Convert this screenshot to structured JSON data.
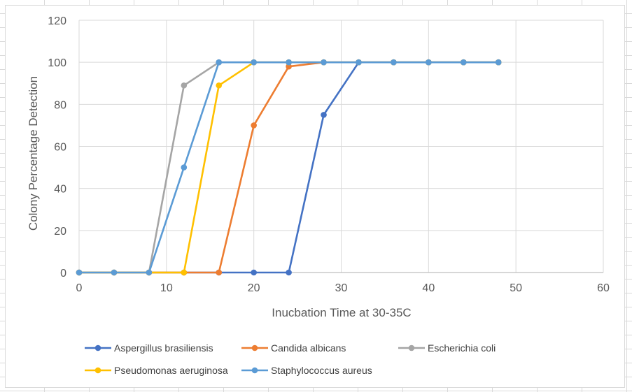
{
  "chart_data": {
    "type": "line",
    "title": "",
    "xlabel": "Inucbation Time at 30-35C",
    "ylabel": "Colony Percentage Detection",
    "xlim": [
      0,
      60
    ],
    "ylim": [
      0,
      120
    ],
    "x_ticks": [
      0,
      10,
      20,
      30,
      40,
      50,
      60
    ],
    "y_ticks": [
      0,
      20,
      40,
      60,
      80,
      100,
      120
    ],
    "grid": true,
    "legend_position": "bottom",
    "series": [
      {
        "name": "Aspergillus brasiliensis",
        "color": "#4472c4",
        "x": [
          0,
          4,
          8,
          12,
          16,
          20,
          24,
          28,
          32,
          36,
          40,
          44,
          48
        ],
        "values": [
          0,
          0,
          0,
          0,
          0,
          0,
          0,
          75,
          100,
          100,
          100,
          100,
          100
        ]
      },
      {
        "name": "Candida albicans",
        "color": "#ed7d31",
        "x": [
          0,
          4,
          8,
          12,
          16,
          20,
          24,
          28,
          32,
          36,
          40,
          44,
          48
        ],
        "values": [
          0,
          0,
          0,
          0,
          0,
          70,
          98,
          100,
          100,
          100,
          100,
          100,
          100
        ]
      },
      {
        "name": "Escherichia coli",
        "color": "#a5a5a5",
        "x": [
          0,
          4,
          8,
          12,
          16,
          20,
          24,
          28,
          32,
          36,
          40,
          44,
          48
        ],
        "values": [
          0,
          0,
          0,
          89,
          100,
          100,
          100,
          100,
          100,
          100,
          100,
          100,
          100
        ]
      },
      {
        "name": "Pseudomonas aeruginosa",
        "color": "#ffc000",
        "x": [
          0,
          4,
          8,
          12,
          16,
          20,
          24,
          28,
          32,
          36,
          40,
          44,
          48
        ],
        "values": [
          0,
          0,
          0,
          0,
          89,
          100,
          100,
          100,
          100,
          100,
          100,
          100,
          100
        ]
      },
      {
        "name": "Staphylococcus aureus",
        "color": "#5b9bd5",
        "x": [
          0,
          4,
          8,
          12,
          16,
          20,
          24,
          28,
          32,
          36,
          40,
          44,
          48
        ],
        "values": [
          0,
          0,
          0,
          50,
          100,
          100,
          100,
          100,
          100,
          100,
          100,
          100,
          100
        ]
      }
    ]
  }
}
